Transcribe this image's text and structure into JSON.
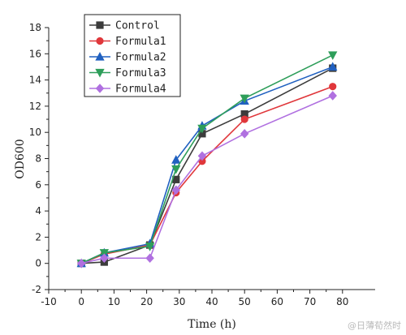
{
  "chart_data": {
    "type": "line",
    "xlabel": "Time (h)",
    "ylabel": "OD600",
    "xlim": [
      -10,
      90
    ],
    "ylim": [
      -2,
      18
    ],
    "xticks": [
      -10,
      0,
      10,
      20,
      30,
      40,
      50,
      60,
      70,
      80
    ],
    "yticks": [
      -2,
      0,
      2,
      4,
      6,
      8,
      10,
      12,
      14,
      16,
      18
    ],
    "grid": false,
    "legend_position": "top-left",
    "x": [
      0,
      7,
      21,
      29,
      37,
      50,
      77
    ],
    "series": [
      {
        "name": "Control",
        "color": "#3c3c3c",
        "marker": "square",
        "values": [
          0,
          0.1,
          1.4,
          6.4,
          9.9,
          11.4,
          14.9
        ]
      },
      {
        "name": "Formula1",
        "color": "#e0373b",
        "marker": "circle",
        "values": [
          0,
          0.7,
          1.4,
          5.4,
          7.8,
          11.0,
          13.5
        ]
      },
      {
        "name": "Formula2",
        "color": "#2060c0",
        "marker": "triangle-up",
        "values": [
          0,
          0.8,
          1.5,
          7.9,
          10.5,
          12.4,
          15.0
        ]
      },
      {
        "name": "Formula3",
        "color": "#2e9e5a",
        "marker": "triangle-down",
        "values": [
          0,
          0.8,
          1.3,
          7.2,
          10.3,
          12.6,
          15.9
        ]
      },
      {
        "name": "Formula4",
        "color": "#b070e0",
        "marker": "diamond",
        "values": [
          0,
          0.4,
          0.4,
          5.6,
          8.2,
          9.9,
          12.8
        ]
      }
    ]
  },
  "watermark": "@日薄荀然时"
}
